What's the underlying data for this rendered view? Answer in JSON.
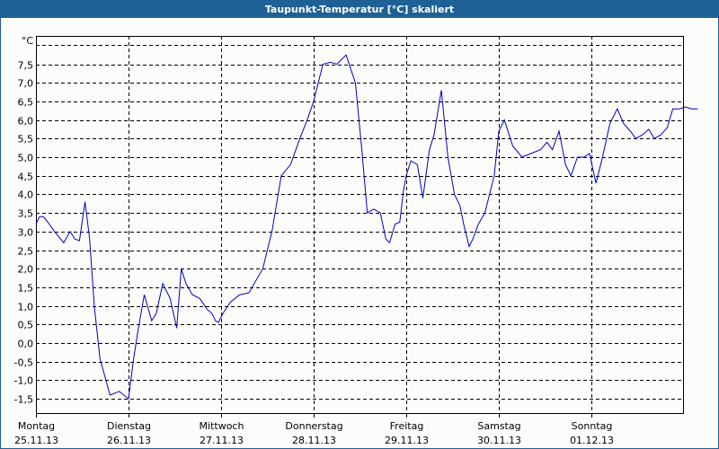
{
  "window": {
    "title": "Taupunkt-Temperatur [°C] skaliert"
  },
  "colors": {
    "titlebar": "#1f6095",
    "title_text": "#ffffff",
    "background": "#fcfdfb",
    "series_line": "#0000c0",
    "grid": "#000000"
  },
  "chart_data": {
    "type": "line",
    "title": "Taupunkt-Temperatur [°C] skaliert",
    "xlabel": "",
    "ylabel": "°C",
    "ylim": [
      -1.9,
      8.2
    ],
    "grid": true,
    "legend": null,
    "y_ticks": [
      "7,5",
      "7,0",
      "6,5",
      "6,0",
      "5,5",
      "5,0",
      "4,5",
      "4,0",
      "3,5",
      "3,0",
      "2,5",
      "2,0",
      "1,5",
      "1,0",
      "0,5",
      "0,0",
      "-0,5",
      "-1,0",
      "-1,5"
    ],
    "y_unit_label": "°C",
    "x_ticks": [
      {
        "day": "Montag",
        "date": "25.11.13"
      },
      {
        "day": "Dienstag",
        "date": "26.11.13"
      },
      {
        "day": "Mittwoch",
        "date": "27.11.13"
      },
      {
        "day": "Donnerstag",
        "date": "28.11.13"
      },
      {
        "day": "Freitag",
        "date": "29.11.13"
      },
      {
        "day": "Samstag",
        "date": "30.11.13"
      },
      {
        "day": "Sonntag",
        "date": "01.12.13"
      }
    ],
    "series": [
      {
        "name": "Taupunkt",
        "x_days": [
          0.0,
          0.04,
          0.08,
          0.13,
          0.2,
          0.3,
          0.37,
          0.42,
          0.47,
          0.53,
          0.58,
          0.63,
          0.69,
          0.8,
          0.9,
          0.95,
          1.0,
          1.05,
          1.1,
          1.17,
          1.25,
          1.3,
          1.37,
          1.45,
          1.52,
          1.57,
          1.62,
          1.69,
          1.77,
          1.85,
          1.9,
          1.94,
          1.97,
          2.02,
          2.1,
          2.2,
          2.3,
          2.45,
          2.55,
          2.65,
          2.75,
          2.85,
          2.93,
          3.0,
          3.05,
          3.1,
          3.18,
          3.25,
          3.35,
          3.45,
          3.52,
          3.58,
          3.65,
          3.72,
          3.78,
          3.82,
          3.88,
          3.93,
          3.97,
          4.0,
          4.05,
          4.12,
          4.18,
          4.25,
          4.3,
          4.38,
          4.45,
          4.52,
          4.58,
          4.62,
          4.68,
          4.72,
          4.78,
          4.85,
          4.95,
          5.0,
          5.06,
          5.15,
          5.25,
          5.35,
          5.45,
          5.52,
          5.58,
          5.65,
          5.72,
          5.78,
          5.85,
          5.92,
          5.98,
          6.05,
          6.12,
          6.2,
          6.28,
          6.35,
          6.42,
          6.48,
          6.55,
          6.62,
          6.68,
          6.75,
          6.82,
          6.88,
          6.95,
          7.02,
          7.08,
          7.15
        ],
        "values": [
          3.2,
          3.4,
          3.4,
          3.25,
          3.0,
          2.7,
          3.0,
          2.8,
          2.75,
          3.8,
          2.8,
          1.0,
          -0.4,
          -1.4,
          -1.3,
          -1.4,
          -1.5,
          -0.5,
          0.3,
          1.3,
          0.6,
          0.8,
          1.6,
          1.2,
          0.4,
          2.0,
          1.6,
          1.3,
          1.2,
          0.9,
          0.8,
          0.6,
          0.55,
          0.8,
          1.1,
          1.3,
          1.35,
          2.0,
          3.0,
          4.5,
          4.8,
          5.5,
          6.0,
          6.5,
          7.0,
          7.5,
          7.55,
          7.5,
          7.75,
          7.0,
          5.2,
          3.5,
          3.6,
          3.5,
          2.8,
          2.7,
          3.2,
          3.25,
          4.1,
          4.5,
          4.9,
          4.8,
          3.9,
          5.2,
          5.6,
          6.8,
          5.0,
          4.0,
          3.7,
          3.2,
          2.6,
          2.8,
          3.2,
          3.5,
          4.5,
          5.7,
          6.0,
          5.3,
          5.0,
          5.1,
          5.2,
          5.4,
          5.2,
          5.7,
          4.8,
          4.5,
          5.0,
          5.0,
          5.1,
          4.3,
          5.0,
          5.9,
          6.3,
          5.9,
          5.7,
          5.5,
          5.6,
          5.75,
          5.5,
          5.6,
          5.8,
          6.3,
          6.3,
          6.35,
          6.3,
          6.3
        ]
      }
    ]
  }
}
